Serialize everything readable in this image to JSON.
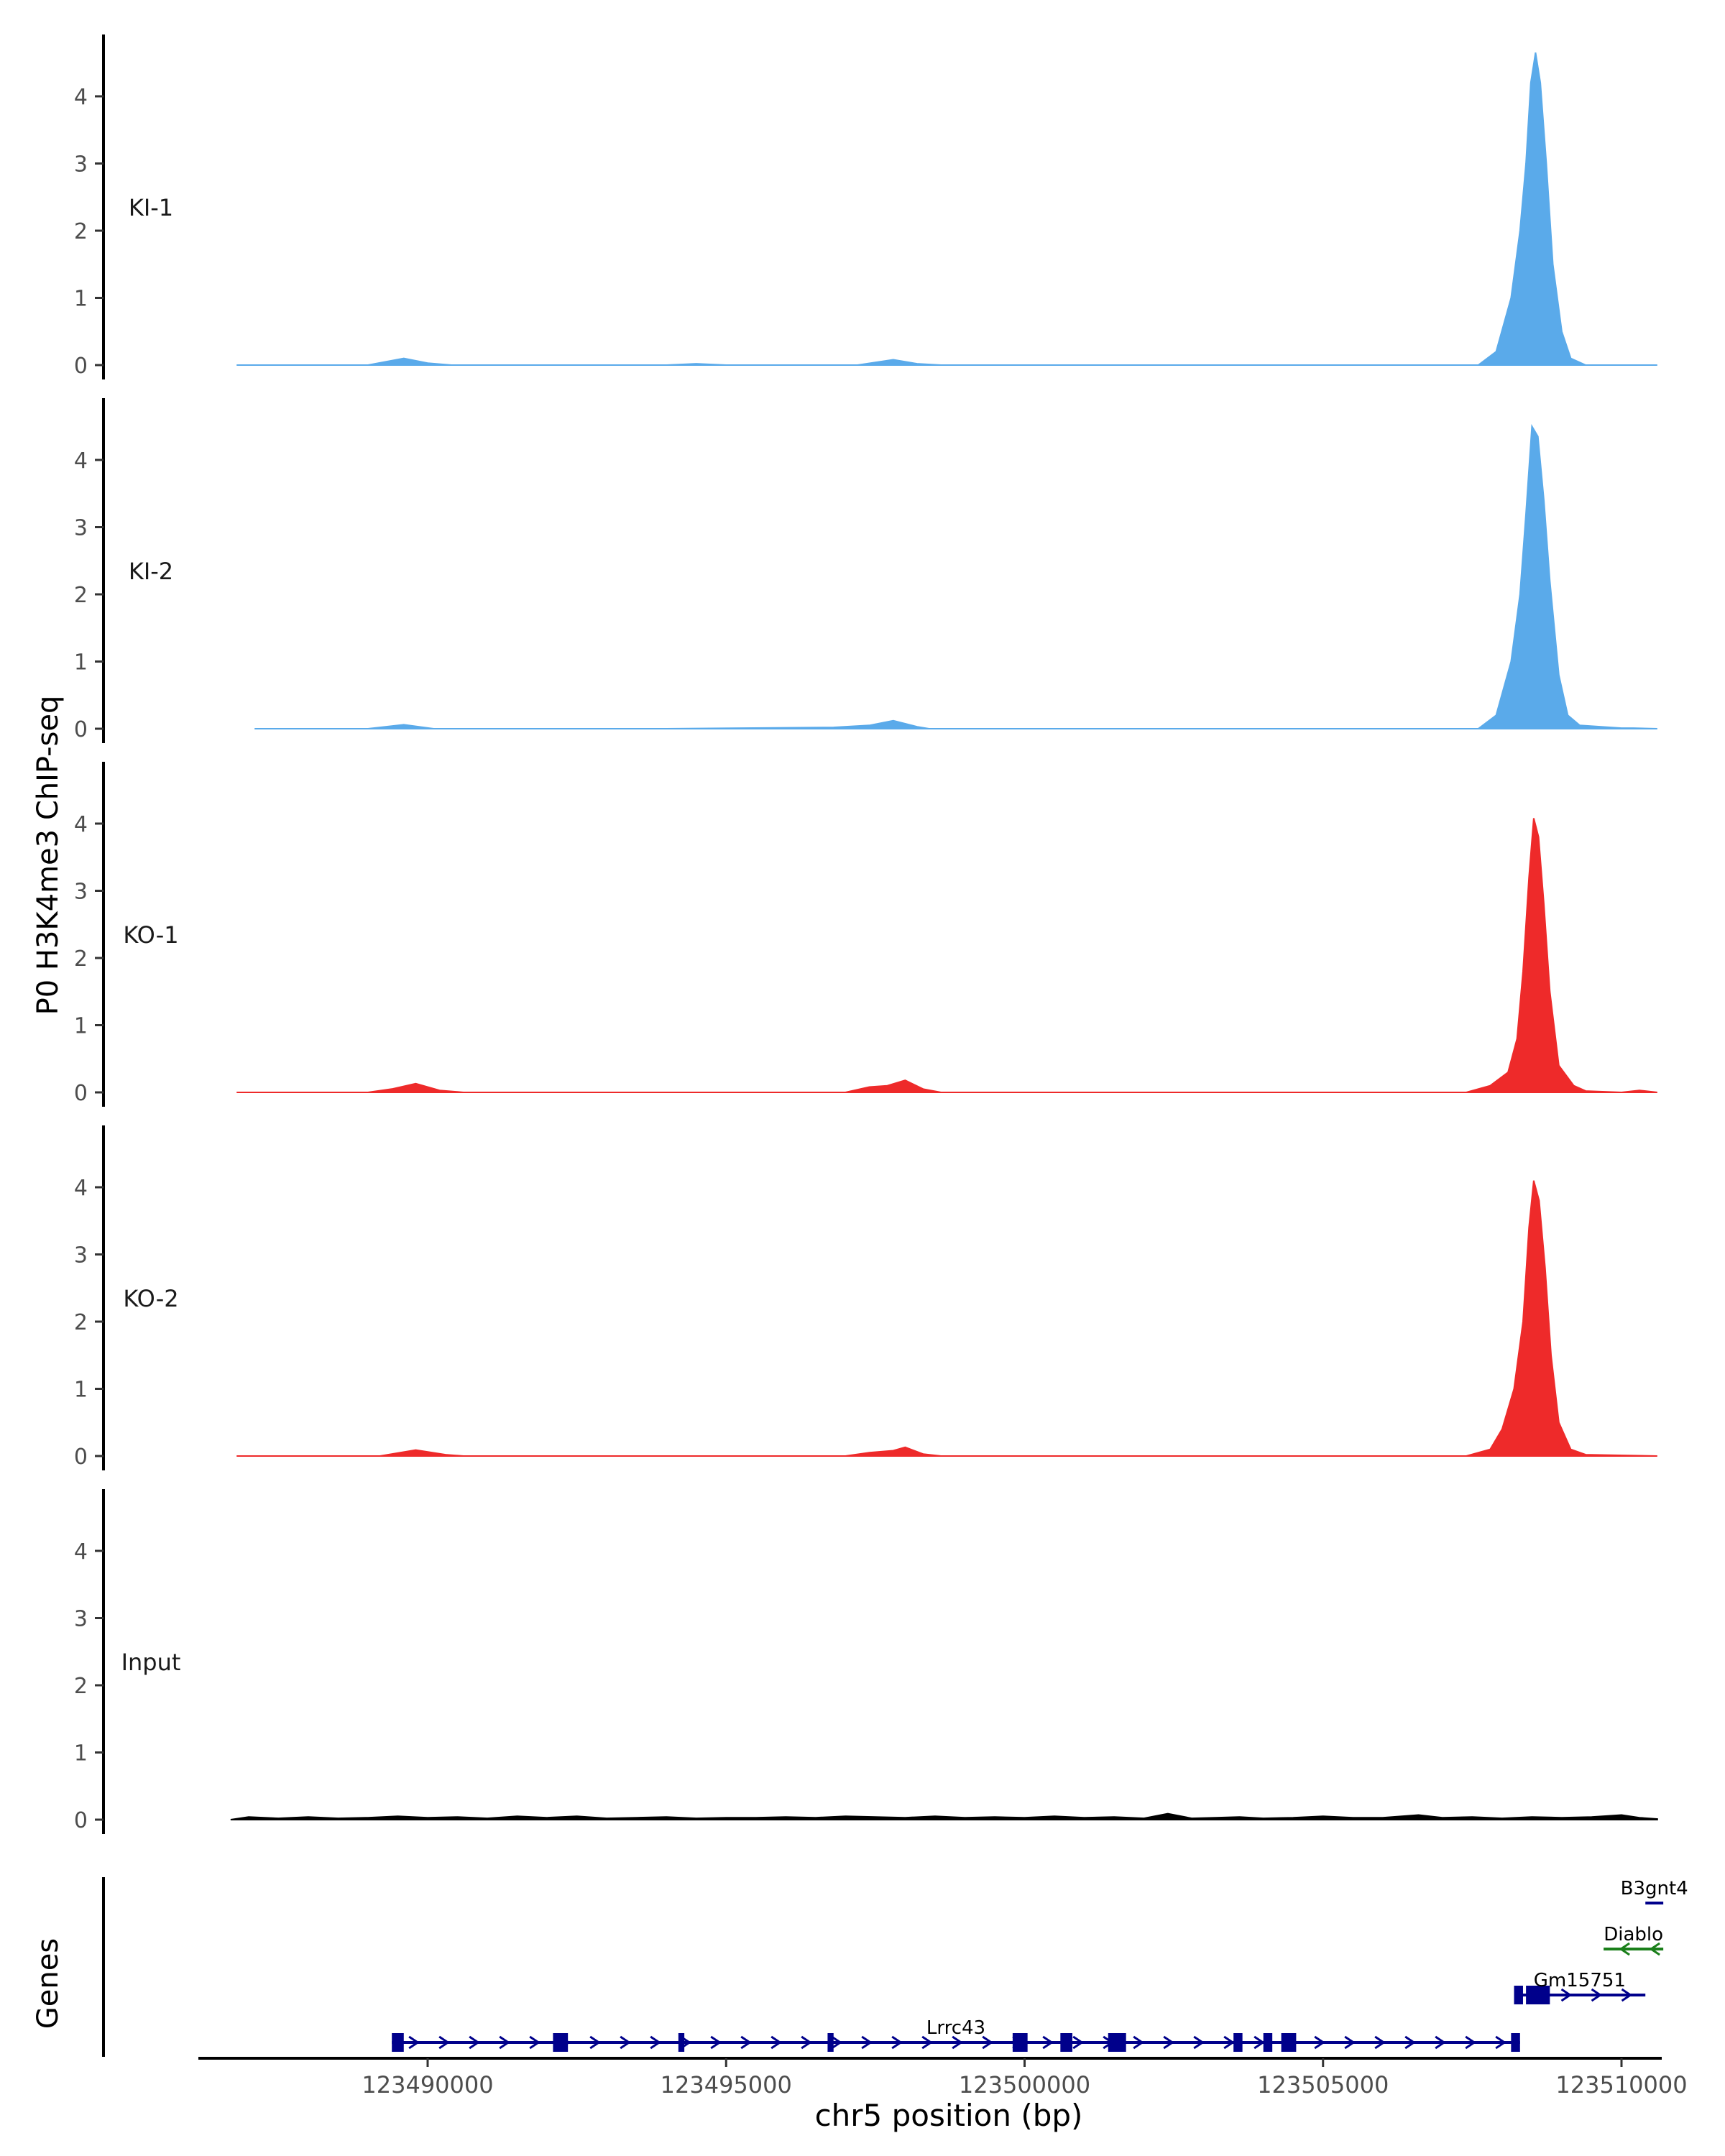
{
  "chart_data": {
    "type": "area",
    "ylabel": "P0 H3K4me3 ChIP-seq",
    "xlabel": "chr5 position (bp)",
    "xlim": [
      123486500,
      123511000
    ],
    "ylim": [
      0,
      4.8
    ],
    "y_ticks": [
      "0",
      "1",
      "2",
      "3",
      "4"
    ],
    "x_ticks": [
      {
        "value": 123490000,
        "label": "123490000"
      },
      {
        "value": 123495000,
        "label": "123495000"
      },
      {
        "value": 123500000,
        "label": "123500000"
      },
      {
        "value": 123505000,
        "label": "123505000"
      },
      {
        "value": 123510000,
        "label": "123510000"
      }
    ],
    "series": [
      {
        "name": "KI-1",
        "color": "#5aaaea",
        "points": [
          [
            123486800,
            0
          ],
          [
            123489000,
            0
          ],
          [
            123489600,
            0.1
          ],
          [
            123490000,
            0.03
          ],
          [
            123490400,
            0
          ],
          [
            123494000,
            0
          ],
          [
            123494500,
            0.02
          ],
          [
            123495000,
            0
          ],
          [
            123497200,
            0
          ],
          [
            123497800,
            0.08
          ],
          [
            123498200,
            0.02
          ],
          [
            123498600,
            0
          ],
          [
            123507600,
            0
          ],
          [
            123507900,
            0.2
          ],
          [
            123508150,
            1.0
          ],
          [
            123508300,
            2.0
          ],
          [
            123508400,
            3.0
          ],
          [
            123508480,
            4.2
          ],
          [
            123508560,
            4.65
          ],
          [
            123508640,
            4.2
          ],
          [
            123508740,
            3.0
          ],
          [
            123508850,
            1.5
          ],
          [
            123509000,
            0.5
          ],
          [
            123509150,
            0.1
          ],
          [
            123509400,
            0
          ],
          [
            123510600,
            0
          ]
        ]
      },
      {
        "name": "KI-2",
        "color": "#5aaaea",
        "points": [
          [
            123487100,
            0
          ],
          [
            123489000,
            0
          ],
          [
            123489600,
            0.06
          ],
          [
            123490100,
            0
          ],
          [
            123494000,
            0
          ],
          [
            123496800,
            0.02
          ],
          [
            123497400,
            0.05
          ],
          [
            123497800,
            0.12
          ],
          [
            123498200,
            0.03
          ],
          [
            123498400,
            0
          ],
          [
            123507600,
            0
          ],
          [
            123507900,
            0.2
          ],
          [
            123508150,
            1.0
          ],
          [
            123508300,
            2.0
          ],
          [
            123508400,
            3.2
          ],
          [
            123508500,
            4.5
          ],
          [
            123508600,
            4.35
          ],
          [
            123508700,
            3.4
          ],
          [
            123508800,
            2.2
          ],
          [
            123508950,
            0.8
          ],
          [
            123509100,
            0.2
          ],
          [
            123509300,
            0.05
          ],
          [
            123510000,
            0.01
          ],
          [
            123510200,
            0.01
          ],
          [
            123510600,
            0
          ]
        ]
      },
      {
        "name": "KO-1",
        "color": "#ee2a2a",
        "points": [
          [
            123486800,
            0
          ],
          [
            123489000,
            0
          ],
          [
            123489400,
            0.05
          ],
          [
            123489800,
            0.13
          ],
          [
            123490200,
            0.03
          ],
          [
            123490600,
            0
          ],
          [
            123497000,
            0
          ],
          [
            123497400,
            0.08
          ],
          [
            123497700,
            0.1
          ],
          [
            123498000,
            0.18
          ],
          [
            123498300,
            0.05
          ],
          [
            123498600,
            0
          ],
          [
            123507400,
            0
          ],
          [
            123507800,
            0.1
          ],
          [
            123508100,
            0.3
          ],
          [
            123508250,
            0.8
          ],
          [
            123508350,
            1.8
          ],
          [
            123508450,
            3.2
          ],
          [
            123508530,
            4.08
          ],
          [
            123508610,
            3.8
          ],
          [
            123508700,
            2.8
          ],
          [
            123508800,
            1.5
          ],
          [
            123508950,
            0.4
          ],
          [
            123509200,
            0.1
          ],
          [
            123509400,
            0.02
          ],
          [
            123510000,
            0
          ],
          [
            123510300,
            0.03
          ],
          [
            123510600,
            0
          ]
        ]
      },
      {
        "name": "KO-2",
        "color": "#ee2a2a",
        "points": [
          [
            123486800,
            0
          ],
          [
            123489200,
            0
          ],
          [
            123489800,
            0.09
          ],
          [
            123490300,
            0.02
          ],
          [
            123490600,
            0
          ],
          [
            123497000,
            0
          ],
          [
            123497400,
            0.05
          ],
          [
            123497800,
            0.08
          ],
          [
            123498000,
            0.13
          ],
          [
            123498300,
            0.03
          ],
          [
            123498600,
            0
          ],
          [
            123507400,
            0
          ],
          [
            123507800,
            0.1
          ],
          [
            123508000,
            0.4
          ],
          [
            123508200,
            1.0
          ],
          [
            123508350,
            2.0
          ],
          [
            123508450,
            3.4
          ],
          [
            123508530,
            4.1
          ],
          [
            123508620,
            3.8
          ],
          [
            123508720,
            2.8
          ],
          [
            123508820,
            1.5
          ],
          [
            123508950,
            0.5
          ],
          [
            123509150,
            0.1
          ],
          [
            123509400,
            0.02
          ],
          [
            123510600,
            0
          ]
        ]
      },
      {
        "name": "Input",
        "color": "#000000",
        "points": [
          [
            123486700,
            0
          ],
          [
            123487000,
            0.04
          ],
          [
            123487500,
            0.02
          ],
          [
            123488000,
            0.04
          ],
          [
            123488500,
            0.02
          ],
          [
            123489000,
            0.03
          ],
          [
            123489500,
            0.05
          ],
          [
            123490000,
            0.03
          ],
          [
            123490500,
            0.04
          ],
          [
            123491000,
            0.02
          ],
          [
            123491500,
            0.05
          ],
          [
            123492000,
            0.03
          ],
          [
            123492500,
            0.05
          ],
          [
            123493000,
            0.02
          ],
          [
            123493500,
            0.03
          ],
          [
            123494000,
            0.04
          ],
          [
            123494500,
            0.02
          ],
          [
            123495000,
            0.03
          ],
          [
            123495500,
            0.03
          ],
          [
            123496000,
            0.04
          ],
          [
            123496500,
            0.03
          ],
          [
            123497000,
            0.05
          ],
          [
            123497500,
            0.04
          ],
          [
            123498000,
            0.03
          ],
          [
            123498500,
            0.05
          ],
          [
            123499000,
            0.03
          ],
          [
            123499500,
            0.04
          ],
          [
            123500000,
            0.03
          ],
          [
            123500500,
            0.05
          ],
          [
            123501000,
            0.03
          ],
          [
            123501500,
            0.04
          ],
          [
            123502000,
            0.02
          ],
          [
            123502400,
            0.09
          ],
          [
            123502800,
            0.02
          ],
          [
            123503200,
            0.03
          ],
          [
            123503600,
            0.04
          ],
          [
            123504000,
            0.02
          ],
          [
            123504500,
            0.03
          ],
          [
            123505000,
            0.05
          ],
          [
            123505500,
            0.03
          ],
          [
            123506000,
            0.03
          ],
          [
            123506600,
            0.07
          ],
          [
            123507000,
            0.03
          ],
          [
            123507500,
            0.04
          ],
          [
            123508000,
            0.02
          ],
          [
            123508500,
            0.04
          ],
          [
            123509000,
            0.03
          ],
          [
            123509500,
            0.04
          ],
          [
            123510000,
            0.07
          ],
          [
            123510300,
            0.03
          ],
          [
            123510600,
            0.01
          ]
        ]
      }
    ],
    "genes_label": "Genes",
    "genes": [
      {
        "name": "Lrrc43",
        "color": "#00008b",
        "strand": "+",
        "start": 123489400,
        "end": 123508300,
        "exons": [
          [
            123489400,
            123489600
          ],
          [
            123492100,
            123492350
          ],
          [
            123494200,
            123494300
          ],
          [
            123496700,
            123496800
          ],
          [
            123499800,
            123500050
          ],
          [
            123500600,
            123500800
          ],
          [
            123501400,
            123501700
          ],
          [
            123503500,
            123503650
          ],
          [
            123504000,
            123504150
          ],
          [
            123504300,
            123504550
          ],
          [
            123508150,
            123508300
          ]
        ]
      },
      {
        "name": "Gm15751",
        "color": "#00008b",
        "strand": "+",
        "start": 123508200,
        "end": 123510400,
        "exons": [
          [
            123508200,
            123508350
          ],
          [
            123508400,
            123508800
          ]
        ]
      },
      {
        "name": "Diablo",
        "color": "#1a7f1a",
        "strand": "-",
        "start": 123509700,
        "end": 123510700,
        "exons": []
      },
      {
        "name": "B3gnt4",
        "color": "#00008b",
        "strand": "+",
        "start": 123510400,
        "end": 123510700,
        "exons": []
      }
    ]
  }
}
